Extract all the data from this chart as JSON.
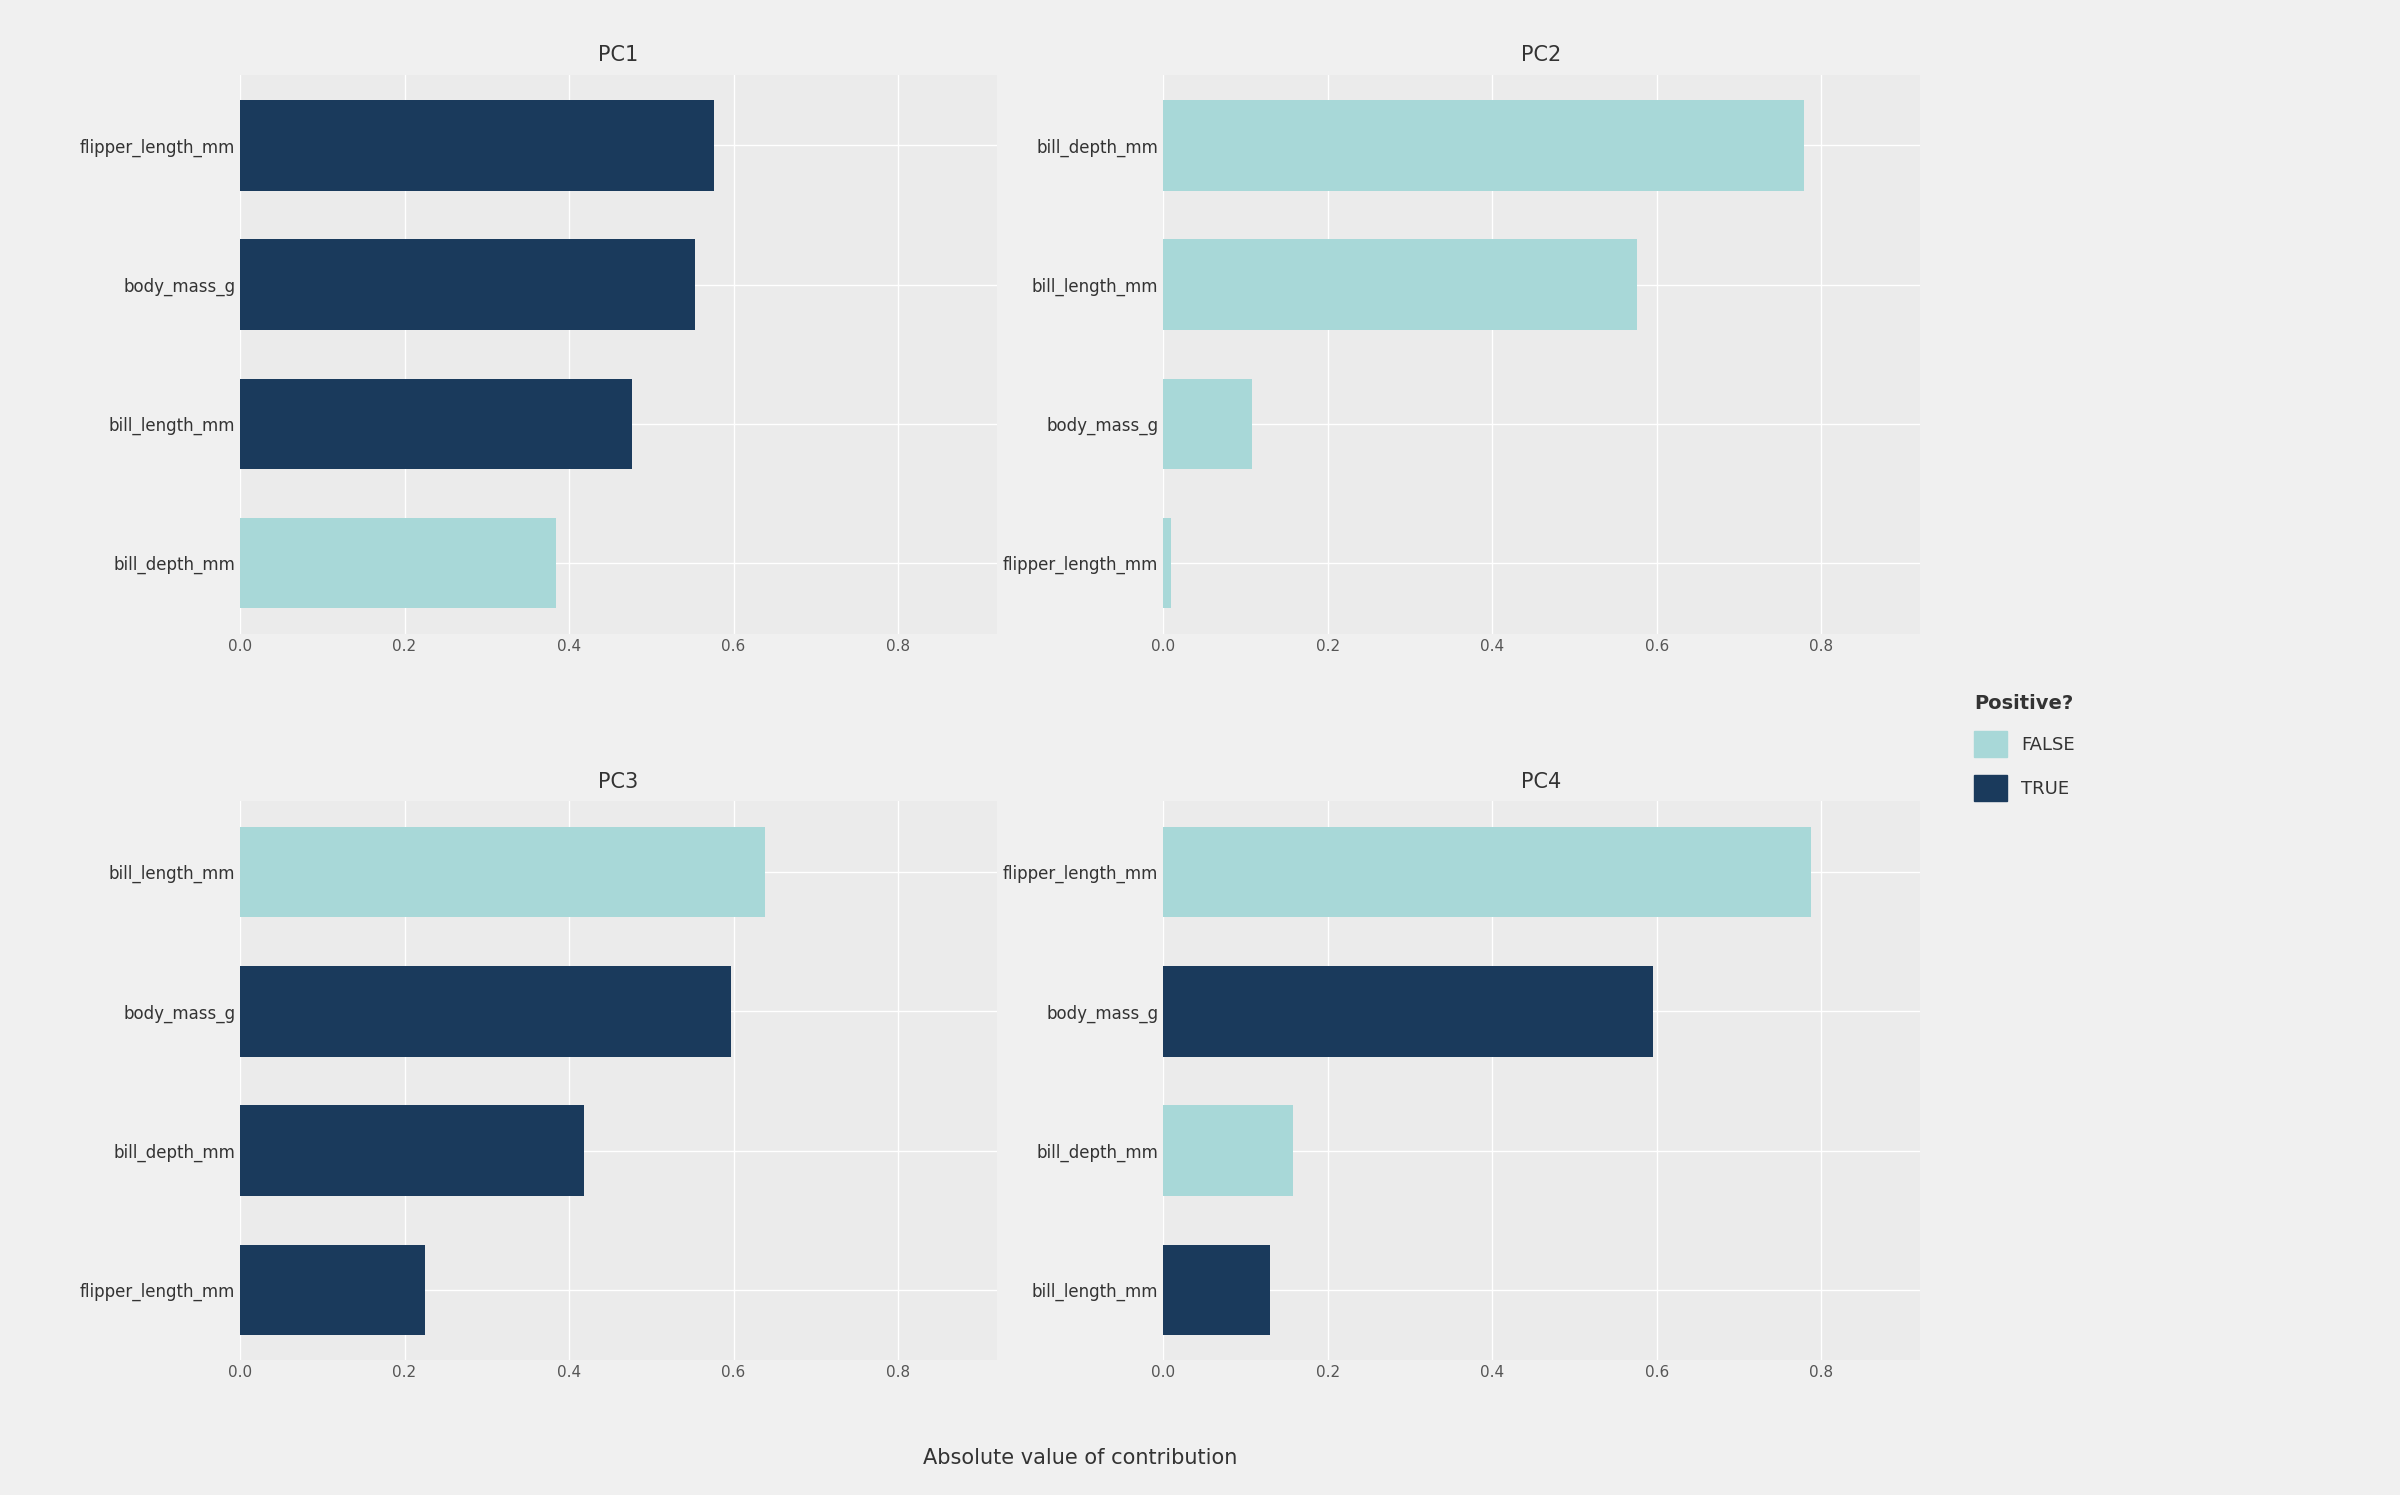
{
  "panels": {
    "PC1": {
      "labels": [
        "flipper_length_mm",
        "body_mass_g",
        "bill_length_mm",
        "bill_depth_mm"
      ],
      "values": [
        0.576,
        0.553,
        0.477,
        0.384
      ],
      "positive": [
        true,
        true,
        true,
        false
      ]
    },
    "PC2": {
      "labels": [
        "bill_depth_mm",
        "bill_length_mm",
        "body_mass_g",
        "flipper_length_mm"
      ],
      "values": [
        0.779,
        0.576,
        0.108,
        0.01
      ],
      "positive": [
        false,
        false,
        false,
        false
      ]
    },
    "PC3": {
      "labels": [
        "bill_length_mm",
        "body_mass_g",
        "bill_depth_mm",
        "flipper_length_mm"
      ],
      "values": [
        0.638,
        0.597,
        0.418,
        0.225
      ],
      "positive": [
        false,
        true,
        true,
        true
      ]
    },
    "PC4": {
      "labels": [
        "flipper_length_mm",
        "body_mass_g",
        "bill_depth_mm",
        "bill_length_mm"
      ],
      "values": [
        0.788,
        0.596,
        0.158,
        0.13
      ],
      "positive": [
        false,
        true,
        false,
        true
      ]
    }
  },
  "color_false": "#a8d8d8",
  "color_true": "#1a3a5c",
  "background_color": "#f0f0f0",
  "panel_background": "#ebebeb",
  "grid_color": "#ffffff",
  "title_fontsize": 15,
  "label_fontsize": 12,
  "tick_fontsize": 11,
  "xlabel": "Absolute value of contribution",
  "xlim": [
    0.0,
    0.92
  ],
  "xticks": [
    0.0,
    0.2,
    0.4,
    0.6,
    0.8
  ],
  "xtick_labels": [
    "0.0",
    "0.2",
    "0.4",
    "0.6",
    "0.8"
  ],
  "legend_title": "Positive?",
  "legend_labels": [
    "FALSE",
    "TRUE"
  ]
}
